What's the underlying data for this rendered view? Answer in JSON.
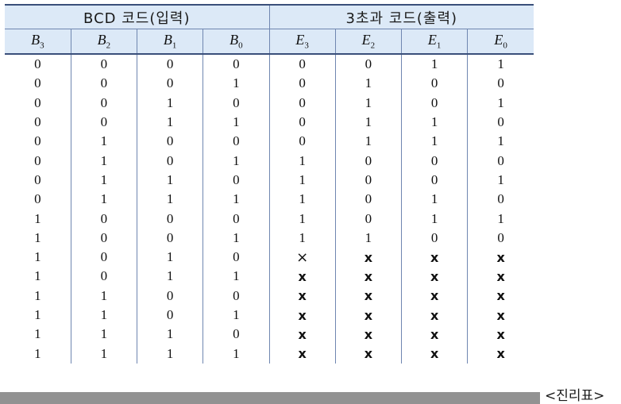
{
  "table": {
    "group_headers": [
      "BCD 코드(입력)",
      "3초과 코드(출력)"
    ],
    "columns": [
      {
        "sym": "B",
        "sub": "3"
      },
      {
        "sym": "B",
        "sub": "2"
      },
      {
        "sym": "B",
        "sub": "1"
      },
      {
        "sym": "B",
        "sub": "0"
      },
      {
        "sym": "E",
        "sub": "3"
      },
      {
        "sym": "E",
        "sub": "2"
      },
      {
        "sym": "E",
        "sub": "1"
      },
      {
        "sym": "E",
        "sub": "0"
      }
    ],
    "rows": [
      [
        "0",
        "0",
        "0",
        "0",
        "0",
        "0",
        "1",
        "1"
      ],
      [
        "0",
        "0",
        "0",
        "1",
        "0",
        "1",
        "0",
        "0"
      ],
      [
        "0",
        "0",
        "1",
        "0",
        "0",
        "1",
        "0",
        "1"
      ],
      [
        "0",
        "0",
        "1",
        "1",
        "0",
        "1",
        "1",
        "0"
      ],
      [
        "0",
        "1",
        "0",
        "0",
        "0",
        "1",
        "1",
        "1"
      ],
      [
        "0",
        "1",
        "0",
        "1",
        "1",
        "0",
        "0",
        "0"
      ],
      [
        "0",
        "1",
        "1",
        "0",
        "1",
        "0",
        "0",
        "1"
      ],
      [
        "0",
        "1",
        "1",
        "1",
        "1",
        "0",
        "1",
        "0"
      ],
      [
        "1",
        "0",
        "0",
        "0",
        "1",
        "0",
        "1",
        "1"
      ],
      [
        "1",
        "0",
        "0",
        "1",
        "1",
        "1",
        "0",
        "0"
      ],
      [
        "1",
        "0",
        "1",
        "0",
        "×",
        "x",
        "x",
        "x"
      ],
      [
        "1",
        "0",
        "1",
        "1",
        "x",
        "x",
        "x",
        "x"
      ],
      [
        "1",
        "1",
        "0",
        "0",
        "x",
        "x",
        "x",
        "x"
      ],
      [
        "1",
        "1",
        "0",
        "1",
        "x",
        "x",
        "x",
        "x"
      ],
      [
        "1",
        "1",
        "1",
        "0",
        "x",
        "x",
        "x",
        "x"
      ],
      [
        "1",
        "1",
        "1",
        "1",
        "x",
        "x",
        "x",
        "x"
      ]
    ]
  },
  "caption": "<진리표>"
}
